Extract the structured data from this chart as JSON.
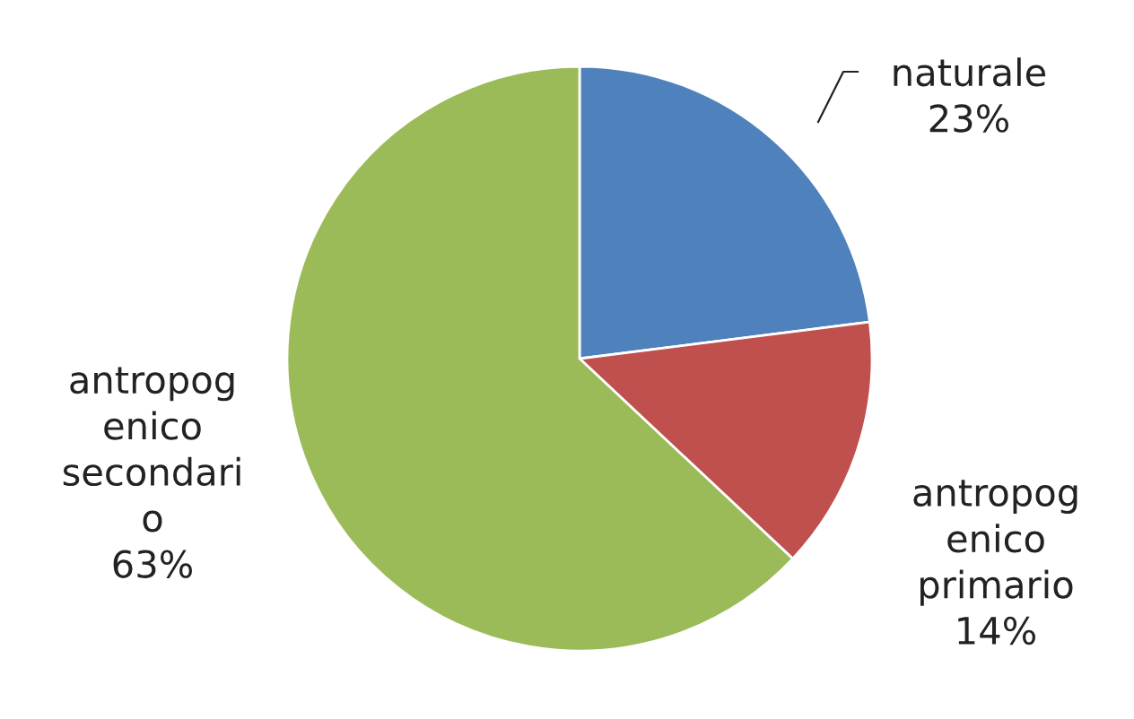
{
  "chart_data": {
    "type": "pie",
    "categories": [
      "naturale",
      "antropog\nenico\nprimario",
      "antropog\nenico\nsecondari\no"
    ],
    "values": [
      23,
      14,
      63
    ],
    "value_labels": [
      "23%",
      "14%",
      "63%"
    ],
    "colors": [
      "#4f81bd",
      "#c0504d",
      "#9bbb59"
    ]
  }
}
